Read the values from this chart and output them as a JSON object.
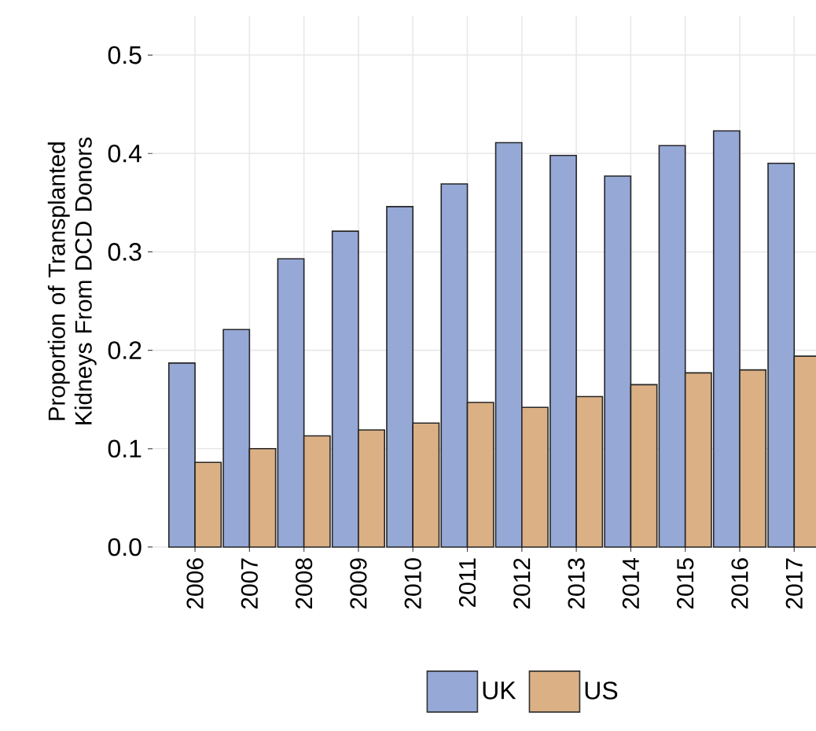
{
  "chart_data": {
    "type": "bar",
    "ylabel": "Proportion of Transplanted Kidneys From DCD Donors",
    "categories": [
      "2006",
      "2007",
      "2008",
      "2009",
      "2010",
      "2011",
      "2012",
      "2013",
      "2014",
      "2015",
      "2016",
      "2017"
    ],
    "series": [
      {
        "name": "UK",
        "color": "#95a8d6",
        "values": [
          0.187,
          0.221,
          0.293,
          0.321,
          0.346,
          0.369,
          0.411,
          0.398,
          0.377,
          0.408,
          0.423,
          0.39
        ]
      },
      {
        "name": "US",
        "color": "#dbb085",
        "values": [
          0.086,
          0.1,
          0.113,
          0.119,
          0.126,
          0.147,
          0.142,
          0.153,
          0.165,
          0.177,
          0.18,
          0.194
        ]
      }
    ],
    "ylim": [
      0,
      0.54
    ],
    "yticks": [
      {
        "value": 0,
        "label": "0.0"
      },
      0.1,
      0.2,
      0.3,
      0.4,
      0.5
    ],
    "grid": true,
    "legend": "bottom"
  }
}
